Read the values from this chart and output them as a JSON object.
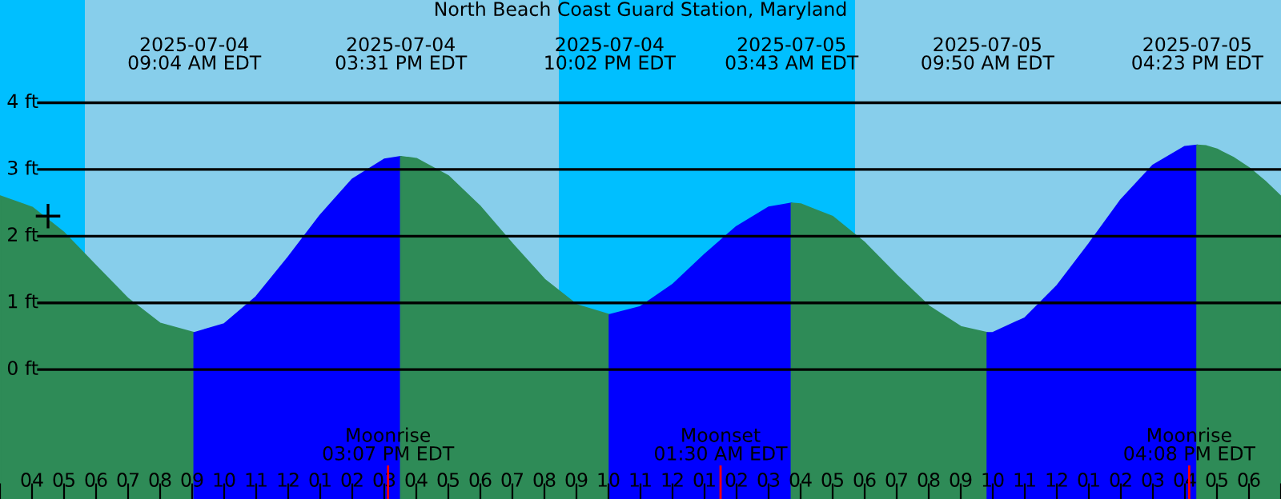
{
  "chart_data": {
    "type": "area",
    "title": "North Beach Coast Guard Station, Maryland",
    "series": [
      {
        "color": "#2e8b57",
        "x": [
          "2025-07-04T03:00",
          "2025-07-04T04:00",
          "2025-07-04T05:00",
          "2025-07-04T06:00",
          "2025-07-04T07:00",
          "2025-07-04T08:00",
          "2025-07-04T09:04"
        ],
        "values": [
          2.6,
          2.43,
          2.05,
          1.55,
          1.06,
          0.69,
          0.55
        ]
      },
      {
        "color": "#0000ff",
        "x": [
          "2025-07-04T09:04",
          "2025-07-04T10:00",
          "2025-07-04T11:00",
          "2025-07-04T12:00",
          "2025-07-04T13:00",
          "2025-07-04T14:00",
          "2025-07-04T15:00",
          "2025-07-04T15:31"
        ],
        "values": [
          0.55,
          0.68,
          1.09,
          1.68,
          2.31,
          2.85,
          3.15,
          3.19
        ]
      },
      {
        "color": "#2e8b57",
        "x": [
          "2025-07-04T15:31",
          "2025-07-04T16:00",
          "2025-07-04T17:00",
          "2025-07-04T18:00",
          "2025-07-04T19:00",
          "2025-07-04T20:00",
          "2025-07-04T21:00",
          "2025-07-04T22:02"
        ],
        "values": [
          3.19,
          3.16,
          2.9,
          2.44,
          1.88,
          1.35,
          0.97,
          0.82
        ]
      },
      {
        "color": "#0000ff",
        "x": [
          "2025-07-04T22:02",
          "2025-07-04T23:00",
          "2025-07-05T00:00",
          "2025-07-05T01:00",
          "2025-07-05T02:00",
          "2025-07-05T03:00",
          "2025-07-05T03:43"
        ],
        "values": [
          0.82,
          0.94,
          1.27,
          1.72,
          2.14,
          2.43,
          2.49
        ]
      },
      {
        "color": "#2e8b57",
        "x": [
          "2025-07-05T03:43",
          "2025-07-05T04:00",
          "2025-07-05T05:00",
          "2025-07-05T06:00",
          "2025-07-05T07:00",
          "2025-07-05T08:00",
          "2025-07-05T09:00",
          "2025-07-05T09:50"
        ],
        "values": [
          2.49,
          2.48,
          2.29,
          1.9,
          1.41,
          0.95,
          0.64,
          0.55
        ]
      },
      {
        "color": "#0000ff",
        "x": [
          "2025-07-05T09:50",
          "2025-07-05T10:00",
          "2025-07-05T11:00",
          "2025-07-05T12:00",
          "2025-07-05T13:00",
          "2025-07-05T14:00",
          "2025-07-05T15:00",
          "2025-07-05T16:00",
          "2025-07-05T16:23"
        ],
        "values": [
          0.55,
          0.55,
          0.77,
          1.25,
          1.88,
          2.54,
          3.06,
          3.34,
          3.36
        ]
      },
      {
        "color": "#2e8b57",
        "x": [
          "2025-07-05T16:23",
          "2025-07-05T16:40",
          "2025-07-05T17:00",
          "2025-07-05T17:30",
          "2025-07-05T18:00",
          "2025-07-05T18:30",
          "2025-07-05T19:00"
        ],
        "values": [
          3.36,
          3.35,
          3.3,
          3.18,
          3.02,
          2.82,
          2.59
        ]
      },
      {
        "type": "scatter",
        "color": "#000000",
        "marker": "cross",
        "x": [
          "2025-07-04T04:30"
        ],
        "values": [
          2.3
        ]
      }
    ],
    "bands": [
      {
        "axis": "x",
        "from": "2025-07-04T03:00",
        "to": "2025-07-04T05:39",
        "color": "#00bfff"
      },
      {
        "axis": "x",
        "from": "2025-07-04T20:27",
        "to": "2025-07-05T05:42",
        "color": "#00bfff"
      }
    ],
    "ref_lines": [
      {
        "axis": "x",
        "value": "2025-07-04T15:07",
        "label": "Moonrise\n03:07 PM EDT",
        "color": "#ff0000"
      },
      {
        "axis": "x",
        "value": "2025-07-05T01:30",
        "label": "Moonset\n01:30 AM EDT",
        "color": "#ff0000"
      },
      {
        "axis": "x",
        "value": "2025-07-05T16:08",
        "label": "Moonrise\n04:08 PM EDT",
        "color": "#ff0000"
      }
    ],
    "xlim": [
      "2025-07-04T03:00",
      "2025-07-05T19:00"
    ],
    "xticks": [
      {
        "value": "2025-07-04T03:00",
        "label": null
      },
      {
        "value": "2025-07-04T04:00",
        "label": "04"
      },
      {
        "value": "2025-07-04T05:00",
        "label": "05"
      },
      {
        "value": "2025-07-04T06:00",
        "label": "06"
      },
      {
        "value": "2025-07-04T07:00",
        "label": "07"
      },
      {
        "value": "2025-07-04T08:00",
        "label": "08"
      },
      {
        "value": "2025-07-04T09:00",
        "label": "09"
      },
      {
        "value": "2025-07-04T10:00",
        "label": "10"
      },
      {
        "value": "2025-07-04T11:00",
        "label": "11"
      },
      {
        "value": "2025-07-04T12:00",
        "label": "12"
      },
      {
        "value": "2025-07-04T13:00",
        "label": "01"
      },
      {
        "value": "2025-07-04T14:00",
        "label": "02"
      },
      {
        "value": "2025-07-04T15:00",
        "label": "03"
      },
      {
        "value": "2025-07-04T16:00",
        "label": "04"
      },
      {
        "value": "2025-07-04T17:00",
        "label": "05"
      },
      {
        "value": "2025-07-04T18:00",
        "label": "06"
      },
      {
        "value": "2025-07-04T19:00",
        "label": "07"
      },
      {
        "value": "2025-07-04T20:00",
        "label": "08"
      },
      {
        "value": "2025-07-04T21:00",
        "label": "09"
      },
      {
        "value": "2025-07-04T22:00",
        "label": "10"
      },
      {
        "value": "2025-07-04T23:00",
        "label": "11"
      },
      {
        "value": "2025-07-05T00:00",
        "label": "12"
      },
      {
        "value": "2025-07-05T01:00",
        "label": "01"
      },
      {
        "value": "2025-07-05T02:00",
        "label": "02"
      },
      {
        "value": "2025-07-05T03:00",
        "label": "03"
      },
      {
        "value": "2025-07-05T04:00",
        "label": "04"
      },
      {
        "value": "2025-07-05T05:00",
        "label": "05"
      },
      {
        "value": "2025-07-05T06:00",
        "label": "06"
      },
      {
        "value": "2025-07-05T07:00",
        "label": "07"
      },
      {
        "value": "2025-07-05T08:00",
        "label": "08"
      },
      {
        "value": "2025-07-05T09:00",
        "label": "09"
      },
      {
        "value": "2025-07-05T10:00",
        "label": "10"
      },
      {
        "value": "2025-07-05T11:00",
        "label": "11"
      },
      {
        "value": "2025-07-05T12:00",
        "label": "12"
      },
      {
        "value": "2025-07-05T13:00",
        "label": "01"
      },
      {
        "value": "2025-07-05T14:00",
        "label": "02"
      },
      {
        "value": "2025-07-05T15:00",
        "label": "03"
      },
      {
        "value": "2025-07-05T16:00",
        "label": "04"
      },
      {
        "value": "2025-07-05T17:00",
        "label": "05"
      },
      {
        "value": "2025-07-05T18:00",
        "label": "06"
      },
      {
        "value": "2025-07-05T19:00",
        "label": null
      }
    ],
    "x2lim": [
      "2025-07-04T03:00",
      "2025-07-05T19:00"
    ],
    "x2ticks": [
      {
        "value": "2025-07-04T09:04",
        "label": "2025-07-04\n09:04 AM EDT"
      },
      {
        "value": "2025-07-04T15:31",
        "label": "2025-07-04\n03:31 PM EDT"
      },
      {
        "value": "2025-07-04T22:02",
        "label": "2025-07-04\n10:02 PM EDT"
      },
      {
        "value": "2025-07-05T03:43",
        "label": "2025-07-05\n03:43 AM EDT"
      },
      {
        "value": "2025-07-05T09:50",
        "label": "2025-07-05\n09:50 AM EDT"
      },
      {
        "value": "2025-07-05T16:23",
        "label": "2025-07-05\n04:23 PM EDT"
      }
    ],
    "ylim": [
      -1.94,
      5.54
    ],
    "yticks": [
      {
        "value": 0,
        "label": "0 ft"
      },
      {
        "value": 1,
        "label": "1 ft"
      },
      {
        "value": 2,
        "label": "2 ft"
      },
      {
        "value": 3,
        "label": "3 ft"
      },
      {
        "value": 4,
        "label": "4 ft"
      }
    ],
    "grid": "y"
  }
}
